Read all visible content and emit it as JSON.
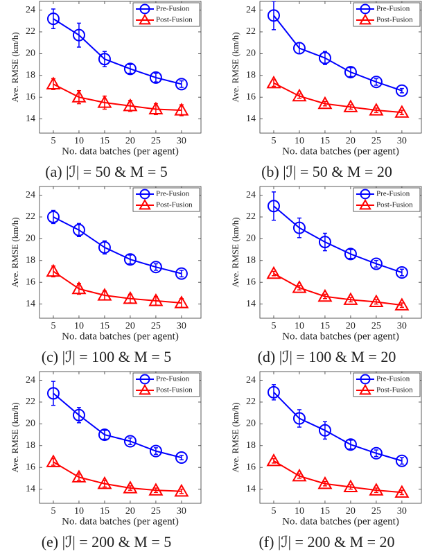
{
  "chart_data": [
    {
      "type": "line",
      "caption": "(a) |ℐ| = 50 & M = 5",
      "xlabel": "No. data batches (per agent)",
      "ylabel": "Ave. RMSE (km/h)",
      "x": [
        5,
        10,
        15,
        20,
        25,
        30
      ],
      "xlim": [
        2.3,
        33.8
      ],
      "ylim": [
        12.7,
        24.8
      ],
      "yticks": [
        14,
        16,
        18,
        20,
        22,
        24
      ],
      "legend": "upper right",
      "series": [
        {
          "name": "Pre-Fusion",
          "color": "#0000ff",
          "marker": "circle",
          "values": [
            23.2,
            21.7,
            19.5,
            18.6,
            17.8,
            17.2
          ],
          "errors": [
            0.9,
            1.1,
            0.7,
            0.4,
            0.4,
            0.3
          ]
        },
        {
          "name": "Post-Fusion",
          "color": "#ff0000",
          "marker": "triangle",
          "values": [
            17.2,
            16.0,
            15.5,
            15.2,
            14.9,
            14.8
          ],
          "errors": [
            0.5,
            0.6,
            0.6,
            0.5,
            0.5,
            0.5
          ]
        }
      ]
    },
    {
      "type": "line",
      "caption": "(b) |ℐ| = 50 & M = 20",
      "xlabel": "No. data batches (per agent)",
      "ylabel": "Ave. RMSE (km/h)",
      "x": [
        5,
        10,
        15,
        20,
        25,
        30
      ],
      "xlim": [
        2.3,
        33.8
      ],
      "ylim": [
        12.7,
        24.8
      ],
      "yticks": [
        14,
        16,
        18,
        20,
        22,
        24
      ],
      "legend": "upper right",
      "series": [
        {
          "name": "Pre-Fusion",
          "color": "#0000ff",
          "marker": "circle",
          "values": [
            23.5,
            20.5,
            19.6,
            18.3,
            17.4,
            16.6
          ],
          "errors": [
            1.3,
            0.5,
            0.6,
            0.4,
            0.3,
            0.2
          ]
        },
        {
          "name": "Post-Fusion",
          "color": "#ff0000",
          "marker": "triangle",
          "values": [
            17.3,
            16.1,
            15.4,
            15.1,
            14.8,
            14.6
          ],
          "errors": [
            0.3,
            0.2,
            0.2,
            0.2,
            0.2,
            0.2
          ]
        }
      ]
    },
    {
      "type": "line",
      "caption": "(c) |ℐ| = 100 & M = 5",
      "xlabel": "No. data batches (per agent)",
      "ylabel": "Ave. RMSE (km/h)",
      "x": [
        5,
        10,
        15,
        20,
        25,
        30
      ],
      "xlim": [
        2.3,
        33.8
      ],
      "ylim": [
        12.7,
        24.8
      ],
      "yticks": [
        14,
        16,
        18,
        20,
        22,
        24
      ],
      "legend": "upper right",
      "series": [
        {
          "name": "Pre-Fusion",
          "color": "#0000ff",
          "marker": "circle",
          "values": [
            22.0,
            20.8,
            19.2,
            18.1,
            17.4,
            16.8
          ],
          "errors": [
            0.6,
            0.6,
            0.6,
            0.4,
            0.3,
            0.3
          ]
        },
        {
          "name": "Post-Fusion",
          "color": "#ff0000",
          "marker": "triangle",
          "values": [
            17.0,
            15.4,
            14.8,
            14.5,
            14.3,
            14.1
          ],
          "errors": [
            0.5,
            0.5,
            0.4,
            0.4,
            0.4,
            0.4
          ]
        }
      ]
    },
    {
      "type": "line",
      "caption": "(d) |ℐ| = 100 & M = 20",
      "xlabel": "No. data batches (per agent)",
      "ylabel": "Ave. RMSE (km/h)",
      "x": [
        5,
        10,
        15,
        20,
        25,
        30
      ],
      "xlim": [
        2.3,
        33.8
      ],
      "ylim": [
        12.7,
        24.8
      ],
      "yticks": [
        14,
        16,
        18,
        20,
        22,
        24
      ],
      "legend": "upper right",
      "series": [
        {
          "name": "Pre-Fusion",
          "color": "#0000ff",
          "marker": "circle",
          "values": [
            23.0,
            21.0,
            19.7,
            18.6,
            17.7,
            16.9
          ],
          "errors": [
            1.3,
            0.9,
            0.8,
            0.4,
            0.3,
            0.3
          ]
        },
        {
          "name": "Post-Fusion",
          "color": "#ff0000",
          "marker": "triangle",
          "values": [
            16.8,
            15.5,
            14.7,
            14.4,
            14.2,
            13.9
          ],
          "errors": [
            0.2,
            0.2,
            0.2,
            0.2,
            0.2,
            0.2
          ]
        }
      ]
    },
    {
      "type": "line",
      "caption": "(e) |ℐ| = 200 & M = 5",
      "xlabel": "No. data batches (per agent)",
      "ylabel": "Ave. RMSE (km/h)",
      "x": [
        5,
        10,
        15,
        20,
        25,
        30
      ],
      "xlim": [
        2.3,
        33.8
      ],
      "ylim": [
        12.7,
        24.8
      ],
      "yticks": [
        14,
        16,
        18,
        20,
        22,
        24
      ],
      "legend": "upper right",
      "series": [
        {
          "name": "Pre-Fusion",
          "color": "#0000ff",
          "marker": "circle",
          "values": [
            22.8,
            20.8,
            19.0,
            18.4,
            17.5,
            16.9
          ],
          "errors": [
            1.1,
            0.7,
            0.4,
            0.3,
            0.3,
            0.2
          ]
        },
        {
          "name": "Post-Fusion",
          "color": "#ff0000",
          "marker": "triangle",
          "values": [
            16.5,
            15.1,
            14.5,
            14.1,
            13.9,
            13.8
          ],
          "errors": [
            0.3,
            0.3,
            0.3,
            0.2,
            0.2,
            0.2
          ]
        }
      ]
    },
    {
      "type": "line",
      "caption": "(f) |ℐ| = 200 & M = 20",
      "xlabel": "No. data batches (per agent)",
      "ylabel": "Ave. RMSE (km/h)",
      "x": [
        5,
        10,
        15,
        20,
        25,
        30
      ],
      "xlim": [
        2.3,
        33.8
      ],
      "ylim": [
        12.7,
        24.8
      ],
      "yticks": [
        14,
        16,
        18,
        20,
        22,
        24
      ],
      "legend": "upper right",
      "series": [
        {
          "name": "Pre-Fusion",
          "color": "#0000ff",
          "marker": "circle",
          "values": [
            22.9,
            20.5,
            19.4,
            18.1,
            17.3,
            16.6
          ],
          "errors": [
            0.7,
            0.8,
            0.8,
            0.4,
            0.3,
            0.3
          ]
        },
        {
          "name": "Post-Fusion",
          "color": "#ff0000",
          "marker": "triangle",
          "values": [
            16.6,
            15.2,
            14.5,
            14.2,
            13.9,
            13.7
          ],
          "errors": [
            0.2,
            0.2,
            0.2,
            0.2,
            0.2,
            0.2
          ]
        }
      ]
    }
  ]
}
